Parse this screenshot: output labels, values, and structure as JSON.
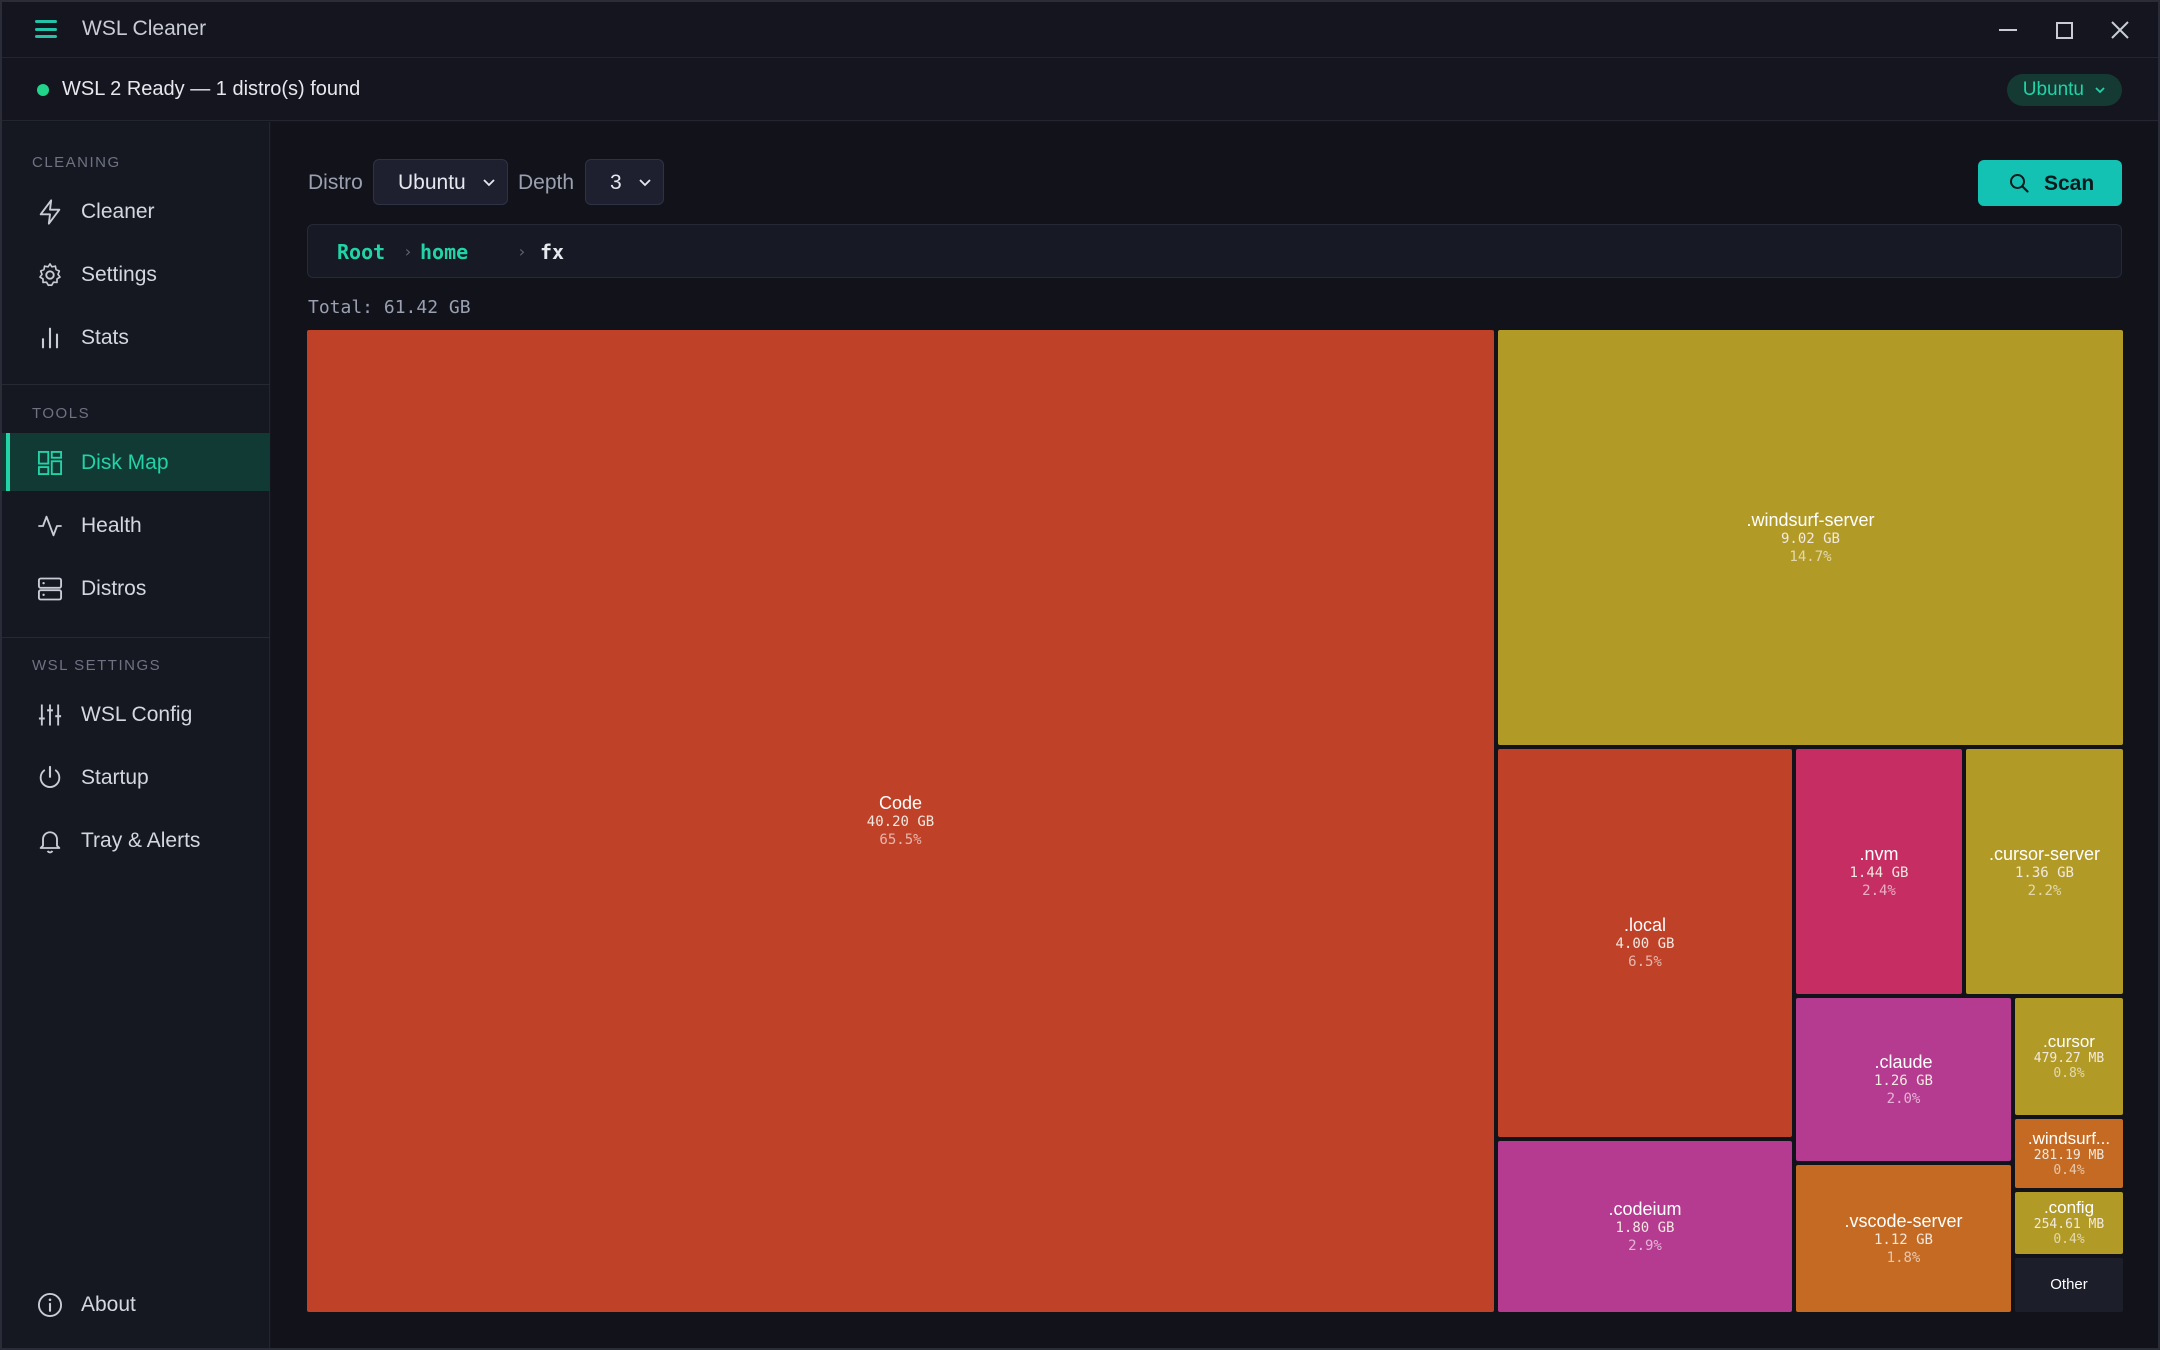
{
  "app": {
    "title": "WSL Cleaner"
  },
  "status": {
    "text": "WSL 2 Ready — 1 distro(s) found",
    "distro_pill": "Ubuntu"
  },
  "sidebar": {
    "sections": [
      {
        "label": "CLEANING",
        "items": [
          {
            "label": "Cleaner",
            "icon": "zap-icon"
          },
          {
            "label": "Settings",
            "icon": "gear-icon"
          },
          {
            "label": "Stats",
            "icon": "bar-chart-icon"
          }
        ]
      },
      {
        "label": "TOOLS",
        "items": [
          {
            "label": "Disk Map",
            "icon": "grid-icon",
            "active": true
          },
          {
            "label": "Health",
            "icon": "activity-icon"
          },
          {
            "label": "Distros",
            "icon": "server-icon"
          }
        ]
      },
      {
        "label": "WSL SETTINGS",
        "items": [
          {
            "label": "WSL Config",
            "icon": "sliders-icon"
          },
          {
            "label": "Startup",
            "icon": "power-icon"
          },
          {
            "label": "Tray & Alerts",
            "icon": "bell-icon"
          }
        ]
      }
    ],
    "about": {
      "label": "About",
      "icon": "info-icon"
    }
  },
  "controls": {
    "distro_label": "Distro",
    "distro_value": "Ubuntu",
    "depth_label": "Depth",
    "depth_value": "3",
    "scan_label": "Scan"
  },
  "breadcrumb": [
    {
      "label": "Root"
    },
    {
      "label": "home"
    },
    {
      "label": "fx"
    }
  ],
  "total": "Total: 61.42 GB",
  "treemap": [
    {
      "name": "Code",
      "size": "40.20 GB",
      "pct": "65.5%",
      "color": "#bf4128"
    },
    {
      "name": ".windsurf-server",
      "size": "9.02 GB",
      "pct": "14.7%",
      "color": "#b29a27"
    },
    {
      "name": ".local",
      "size": "4.00 GB",
      "pct": "6.5%",
      "color": "#bf4128"
    },
    {
      "name": ".nvm",
      "size": "1.44 GB",
      "pct": "2.4%",
      "color": "#c52d63"
    },
    {
      "name": ".cursor-server",
      "size": "1.36 GB",
      "pct": "2.2%",
      "color": "#b29a27"
    },
    {
      "name": ".codeium",
      "size": "1.80 GB",
      "pct": "2.9%",
      "color": "#b53b90"
    },
    {
      "name": ".claude",
      "size": "1.26 GB",
      "pct": "2.0%",
      "color": "#b53b90"
    },
    {
      "name": ".vscode-server",
      "size": "1.12 GB",
      "pct": "1.8%",
      "color": "#c46a22"
    },
    {
      "name": ".cursor",
      "size": "479.27 MB",
      "pct": "0.8%",
      "color": "#b29a27"
    },
    {
      "name": ".windsurf...",
      "size": "281.19 MB",
      "pct": "0.4%",
      "color": "#c46a22"
    },
    {
      "name": ".config",
      "size": "254.61 MB",
      "pct": "0.4%",
      "color": "#b29a27"
    },
    {
      "name": "Other",
      "size": "",
      "pct": "",
      "color": "#1c1e2a"
    }
  ]
}
